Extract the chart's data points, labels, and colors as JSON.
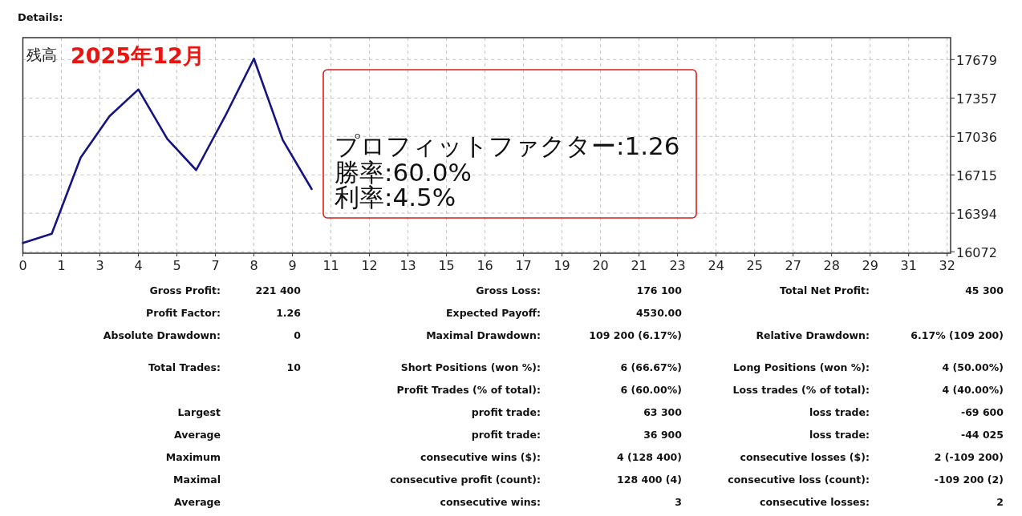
{
  "chart_data": {
    "type": "line",
    "title": "Details:",
    "subtitle": "2025年12月",
    "ylabel": "残高",
    "x": [
      0,
      1,
      2,
      3,
      4,
      5,
      6,
      7,
      8,
      9,
      10
    ],
    "values": [
      16146,
      16223,
      16859,
      17206,
      17429,
      17016,
      16755,
      17204,
      17686,
      17005,
      16596
    ],
    "color": "#141482",
    "xlim": [
      0,
      32.12
    ],
    "xticks": [
      0,
      {
        "value": 1.3333,
        "label": "1"
      },
      {
        "value": 2.6667,
        "label": "3"
      },
      4,
      {
        "value": 5.3333,
        "label": "5"
      },
      {
        "value": 6.6667,
        "label": "7"
      },
      8,
      {
        "value": 9.3333,
        "label": "9"
      },
      {
        "value": 10.6667,
        "label": "11"
      },
      12,
      {
        "value": 13.3333,
        "label": "13"
      },
      {
        "value": 14.6667,
        "label": "15"
      },
      16,
      {
        "value": 17.3333,
        "label": "17"
      },
      {
        "value": 18.6667,
        "label": "19"
      },
      20,
      {
        "value": 21.3333,
        "label": "21"
      },
      {
        "value": 22.6667,
        "label": "23"
      },
      24,
      {
        "value": 25.3333,
        "label": "25"
      },
      {
        "value": 26.6667,
        "label": "27"
      },
      28,
      {
        "value": 29.3333,
        "label": "29"
      },
      {
        "value": 30.6667,
        "label": "31"
      },
      32
    ],
    "ylim": [
      16060,
      17862
    ],
    "yticks": [
      16072,
      16394,
      16715,
      17036,
      17357,
      17679
    ],
    "grid": true,
    "annotations": [
      "プロフィットファクター:1.26",
      "勝率:60.0%",
      "利率:4.5%",
      "Gross Profit:",
      "221 400",
      "Gross Loss:",
      "176 100",
      "Total Net Profit:",
      "45 300",
      "Profit Factor:",
      "1.26",
      "Expected Payoff:",
      "4530.00",
      "Absolute Drawdown:",
      "0",
      "Maximal Drawdown:",
      "109 200 (6.17%)",
      "Relative Drawdown:",
      "6.17% (109 200)",
      "Total Trades:",
      "10",
      "Short Positions (won %):",
      "6 (66.67%)",
      "Long Positions (won %):",
      "4 (50.00%)",
      "Profit Trades (% of total):",
      "6 (60.00%)",
      "Loss trades (% of total):",
      "4 (40.00%)",
      "Largest",
      "profit trade:",
      "63 300",
      "loss trade:",
      "-69 600",
      "Average",
      "profit trade:",
      "36 900",
      "loss trade:",
      "-44 025",
      "Maximum",
      "consecutive wins ($):",
      "4 (128 400)",
      "consecutive losses ($):",
      "2 (-109 200)",
      "Maximal",
      "consecutive profit (count):",
      "128 400 (4)",
      "consecutive loss (count):",
      "-109 200 (2)",
      "Average",
      "consecutive wins:",
      "3",
      "consecutive losses:",
      "2"
    ]
  }
}
